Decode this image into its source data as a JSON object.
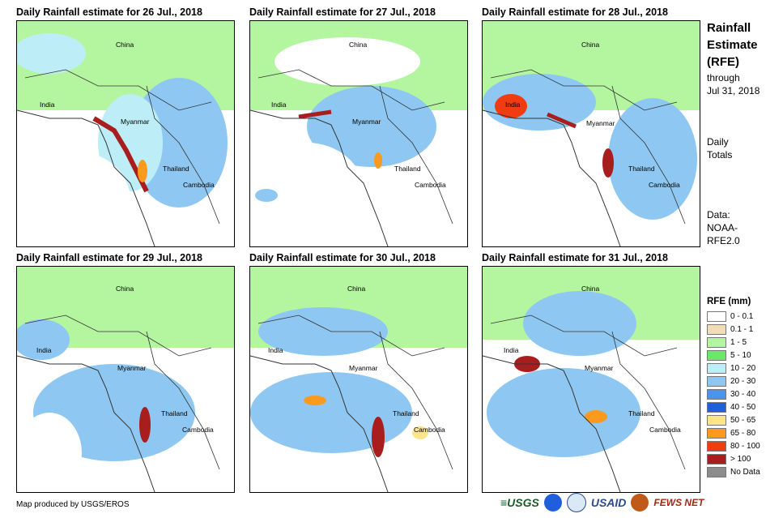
{
  "panels": [
    {
      "title": "Daily Rainfall estimate for 26 Jul., 2018",
      "labels": [
        "China",
        "India",
        "Myanmar",
        "Thailand",
        "Cambodia"
      ]
    },
    {
      "title": "Daily Rainfall estimate for 27 Jul., 2018",
      "labels": [
        "China",
        "India",
        "Myanmar",
        "Thailand",
        "Cambodia"
      ]
    },
    {
      "title": "Daily Rainfall estimate for 28 Jul., 2018",
      "labels": [
        "China",
        "India",
        "Myanmar",
        "Thailand",
        "Cambodia"
      ]
    },
    {
      "title": "Daily Rainfall estimate for 29 Jul., 2018",
      "labels": [
        "China",
        "India",
        "Myanmar",
        "Thailand",
        "Cambodia"
      ]
    },
    {
      "title": "Daily Rainfall estimate for 30 Jul., 2018",
      "labels": [
        "China",
        "India",
        "Myanmar",
        "Thailand",
        "Cambodia"
      ]
    },
    {
      "title": "Daily Rainfall estimate for 31 Jul., 2018",
      "labels": [
        "China",
        "India",
        "Myanmar",
        "Thailand",
        "Cambodia"
      ]
    }
  ],
  "sidebar": {
    "title_line1": "Rainfall",
    "title_line2": "Estimate",
    "title_line3": "(RFE)",
    "through": "through",
    "through_date": "Jul 31, 2018",
    "daily": "Daily",
    "totals": "Totals",
    "data_label": "Data:",
    "data_source1": "NOAA-",
    "data_source2": "RFE2.0"
  },
  "legend": {
    "title": "RFE (mm)",
    "items": [
      {
        "label": "0 - 0.1",
        "color": "#ffffff"
      },
      {
        "label": "0.1 - 1",
        "color": "#f2dcb8"
      },
      {
        "label": "1 - 5",
        "color": "#b4f5a0"
      },
      {
        "label": "5 - 10",
        "color": "#6ee66a"
      },
      {
        "label": "10 - 20",
        "color": "#bdeef8"
      },
      {
        "label": "20 - 30",
        "color": "#8ec8f2"
      },
      {
        "label": "30 - 40",
        "color": "#4a94ea"
      },
      {
        "label": "40 - 50",
        "color": "#1f5fdc"
      },
      {
        "label": "50 - 65",
        "color": "#fbe48a"
      },
      {
        "label": "65 - 80",
        "color": "#fb9a1c"
      },
      {
        "label": "80 - 100",
        "color": "#f03c10"
      },
      {
        "label": "> 100",
        "color": "#a81e1e"
      },
      {
        "label": "No Data",
        "color": "#8c8c8c"
      }
    ]
  },
  "footer": {
    "credit": "Map produced by USGS/EROS",
    "logo_usgs": "≡USGS",
    "logo_usaid": "USAID",
    "logo_fewsnet": "FEWS NET"
  }
}
